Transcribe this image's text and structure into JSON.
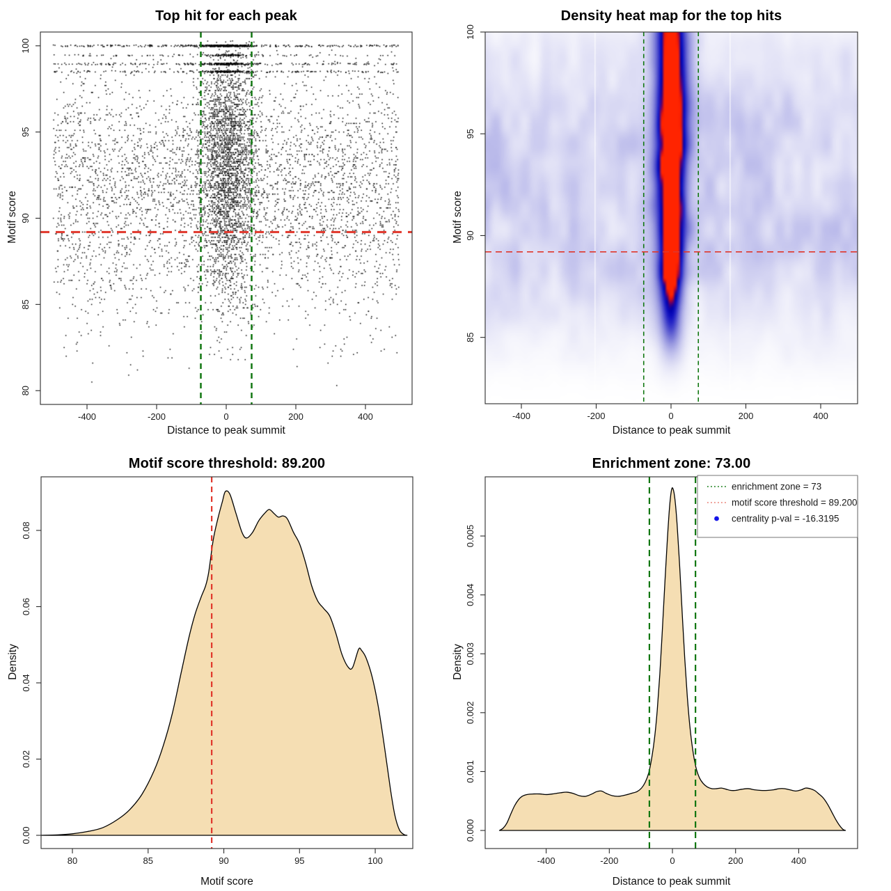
{
  "page": {
    "background": "#ffffff"
  },
  "colors": {
    "threshold_red": "#e0362b",
    "zone_green": "#117711",
    "legend_green": "#2f8b2f",
    "legend_red": "#ec8c83",
    "pval_blue": "#1414e8",
    "point_black": "#000000",
    "area_fill": "#f5deb3",
    "area_stroke": "#000000",
    "box": "#2a2a2a",
    "text": "#1a1a1a"
  },
  "chart_data": [
    {
      "type": "scatter",
      "title": "Top hit for each peak",
      "xlabel": "Distance to peak summit",
      "ylabel": "Motif score",
      "x_domain": [
        -534,
        534
      ],
      "y_domain": [
        79.2,
        100.8
      ],
      "x_ticks": [
        -400,
        -200,
        0,
        200,
        400
      ],
      "x_tick_labels": [
        "-400",
        "-200",
        "0",
        "200",
        "400"
      ],
      "y_ticks": [
        80,
        85,
        90,
        95,
        100
      ],
      "y_tick_labels": [
        "80",
        "85",
        "90",
        "95",
        "100"
      ],
      "motif_score_threshold": 89.2,
      "enrichment_zone": [
        -73,
        73
      ],
      "generator": {
        "seed": 11,
        "n": 7500,
        "center_fraction": 0.42,
        "center_x_mean": 4,
        "center_x_sd": 38,
        "center_score_shift": 1.2,
        "center_band_probability": 0.22,
        "x_limit": 497,
        "top_bands": {
          "probability": 0.13,
          "rows": [
            [
              100.0,
              0.4
            ],
            [
              99.45,
              0.12
            ],
            [
              98.95,
              0.28
            ],
            [
              98.5,
              0.2
            ]
          ],
          "jitter": 0.05
        },
        "score_components": [
          {
            "weight": 0.32,
            "mean": 92.6,
            "sd": 2.1
          },
          {
            "weight": 0.27,
            "mean": 89.6,
            "sd": 2.3
          },
          {
            "weight": 0.18,
            "mean": 95.6,
            "sd": 1.9
          },
          {
            "weight": 0.1,
            "mean": 86.2,
            "sd": 2.4
          }
        ],
        "score_min": 80.15,
        "score_max": 100.3,
        "quantize_step": 0.1,
        "quantize_below": 98.4
      }
    },
    {
      "type": "heatmap",
      "title": "Density heat map for the top hits",
      "xlabel": "Distance to peak summit",
      "ylabel": "Motif score",
      "x_domain": [
        -496.7,
        498.6
      ],
      "y_domain": [
        81.74,
        100
      ],
      "x_ticks": [
        -400,
        -200,
        0,
        200,
        400
      ],
      "x_tick_labels": [
        "-400",
        "-200",
        "0",
        "200",
        "400"
      ],
      "y_ticks": [
        85,
        90,
        95,
        100
      ],
      "y_tick_labels": [
        "85",
        "90",
        "95",
        "100"
      ],
      "motif_score_threshold": 89.2,
      "enrichment_zone": [
        -73,
        73
      ],
      "white_lines_x": [
        -203,
        158
      ],
      "density_model": {
        "blobs": [
          [
            99.9,
            0.88,
            0.9
          ],
          [
            98.1,
            0.97,
            1.1
          ],
          [
            97.0,
            0.94,
            1.0
          ],
          [
            94.8,
            1.0,
            1.5
          ],
          [
            92.4,
            0.8,
            1.3
          ],
          [
            90.3,
            0.76,
            1.0
          ],
          [
            88.8,
            0.7,
            0.9
          ],
          [
            87.1,
            0.6,
            1.3
          ],
          [
            85.3,
            0.3,
            1.2
          ]
        ],
        "column_sigma": {
          "lower": 23,
          "upper": 33,
          "transition_y": 91.2,
          "transition_scale": 1.4
        },
        "noise": {
          "seed": 5,
          "cell_x": 52,
          "cell_y": 2.1,
          "base": 0.1,
          "amp": 0.38
        },
        "envelope": [
          [
            90.2,
            0.8,
            5.0
          ],
          [
            96.0,
            0.45,
            3.0
          ],
          [
            99.3,
            0.22,
            1.5
          ]
        ],
        "fade_below": [
          81.6,
          84.0
        ]
      },
      "colormap": [
        [
          0,
          "#ffffff"
        ],
        [
          0.05,
          "#f6f6fc"
        ],
        [
          0.12,
          "#e9e9f8"
        ],
        [
          0.22,
          "#d4d4f2"
        ],
        [
          0.33,
          "#b9b9ea"
        ],
        [
          0.45,
          "#9898e0"
        ],
        [
          0.56,
          "#7474d6"
        ],
        [
          0.66,
          "#4c4ccd"
        ],
        [
          0.75,
          "#2626c6"
        ],
        [
          0.82,
          "#0d0dbd"
        ],
        [
          0.875,
          "#0000ad"
        ],
        [
          0.91,
          "#2a0089"
        ],
        [
          0.94,
          "#800057"
        ],
        [
          0.965,
          "#cf1018"
        ],
        [
          1,
          "#ff2400"
        ]
      ]
    },
    {
      "type": "area",
      "title": "Motif score threshold: 89.200",
      "xlabel": "Motif score",
      "ylabel": "Density",
      "x_domain": [
        77.93,
        102.48
      ],
      "y_domain": [
        -0.00347,
        0.09406
      ],
      "x_ticks": [
        80,
        85,
        90,
        95,
        100
      ],
      "x_tick_labels": [
        "80",
        "85",
        "90",
        "95",
        "100"
      ],
      "y_ticks": [
        0,
        0.02,
        0.04,
        0.06,
        0.08
      ],
      "y_tick_labels": [
        "0.00",
        "0.02",
        "0.04",
        "0.06",
        "0.08"
      ],
      "threshold_x": 89.2,
      "points": [
        [
          77.95,
          0
        ],
        [
          79.0,
          0.0001
        ],
        [
          80.0,
          0.0004
        ],
        [
          81.0,
          0.001
        ],
        [
          82.0,
          0.002
        ],
        [
          83.0,
          0.0042
        ],
        [
          83.8,
          0.0068
        ],
        [
          84.6,
          0.0108
        ],
        [
          85.4,
          0.017
        ],
        [
          86.0,
          0.0235
        ],
        [
          86.6,
          0.032
        ],
        [
          87.2,
          0.043
        ],
        [
          87.7,
          0.052
        ],
        [
          88.1,
          0.058
        ],
        [
          88.5,
          0.0625
        ],
        [
          88.8,
          0.0655
        ],
        [
          89.0,
          0.069
        ],
        [
          89.3,
          0.0775
        ],
        [
          89.6,
          0.083
        ],
        [
          89.9,
          0.0875
        ],
        [
          90.1,
          0.0902
        ],
        [
          90.4,
          0.0895
        ],
        [
          90.8,
          0.0845
        ],
        [
          91.2,
          0.0795
        ],
        [
          91.5,
          0.078
        ],
        [
          91.9,
          0.0795
        ],
        [
          92.3,
          0.0825
        ],
        [
          92.7,
          0.0845
        ],
        [
          93.0,
          0.0855
        ],
        [
          93.3,
          0.0845
        ],
        [
          93.6,
          0.0835
        ],
        [
          93.9,
          0.0838
        ],
        [
          94.2,
          0.083
        ],
        [
          94.6,
          0.0795
        ],
        [
          95.0,
          0.0765
        ],
        [
          95.4,
          0.0715
        ],
        [
          95.8,
          0.0655
        ],
        [
          96.2,
          0.0615
        ],
        [
          96.6,
          0.0595
        ],
        [
          97.0,
          0.0575
        ],
        [
          97.4,
          0.053
        ],
        [
          97.8,
          0.0475
        ],
        [
          98.2,
          0.0442
        ],
        [
          98.5,
          0.044
        ],
        [
          98.9,
          0.0488
        ],
        [
          99.1,
          0.0485
        ],
        [
          99.4,
          0.0465
        ],
        [
          99.8,
          0.0415
        ],
        [
          100.2,
          0.0338
        ],
        [
          100.6,
          0.0235
        ],
        [
          101.0,
          0.0122
        ],
        [
          101.3,
          0.0052
        ],
        [
          101.6,
          0.0014
        ],
        [
          101.9,
          0.0002
        ],
        [
          102.1,
          0
        ]
      ]
    },
    {
      "type": "area",
      "title": "Enrichment zone: 73.00",
      "xlabel": "Distance to peak summit",
      "ylabel": "Density",
      "x_domain": [
        -593.2,
        586.5
      ],
      "y_domain": [
        -0.000307,
        0.006005
      ],
      "x_ticks": [
        -400,
        -200,
        0,
        200,
        400
      ],
      "x_tick_labels": [
        "-400",
        "-200",
        "0",
        "200",
        "400"
      ],
      "y_ticks": [
        0,
        0.001,
        0.002,
        0.003,
        0.004,
        0.005
      ],
      "y_tick_labels": [
        "0.000",
        "0.001",
        "0.002",
        "0.003",
        "0.004",
        "0.005"
      ],
      "enrichment_zone": [
        -73,
        73
      ],
      "points": [
        [
          -548,
          0
        ],
        [
          -536,
          4e-05
        ],
        [
          -524,
          0.00013
        ],
        [
          -512,
          0.00028
        ],
        [
          -500,
          0.00042
        ],
        [
          -488,
          0.00052
        ],
        [
          -476,
          0.00058
        ],
        [
          -460,
          0.00061
        ],
        [
          -440,
          0.00062
        ],
        [
          -420,
          0.00062
        ],
        [
          -400,
          0.00061
        ],
        [
          -380,
          0.00062
        ],
        [
          -355,
          0.00064
        ],
        [
          -335,
          0.00065
        ],
        [
          -315,
          0.00063
        ],
        [
          -295,
          0.00059
        ],
        [
          -275,
          0.00058
        ],
        [
          -255,
          0.00062
        ],
        [
          -240,
          0.00066
        ],
        [
          -225,
          0.00067
        ],
        [
          -210,
          0.00063
        ],
        [
          -190,
          0.00059
        ],
        [
          -170,
          0.00058
        ],
        [
          -150,
          0.0006
        ],
        [
          -130,
          0.00063
        ],
        [
          -112,
          0.00066
        ],
        [
          -98,
          0.00072
        ],
        [
          -86,
          0.00082
        ],
        [
          -75,
          0.00098
        ],
        [
          -65,
          0.00125
        ],
        [
          -56,
          0.0016
        ],
        [
          -48,
          0.00205
        ],
        [
          -40,
          0.00265
        ],
        [
          -32,
          0.0034
        ],
        [
          -24,
          0.0042
        ],
        [
          -16,
          0.00495
        ],
        [
          -9,
          0.0055
        ],
        [
          -3,
          0.00578
        ],
        [
          2,
          0.0058
        ],
        [
          8,
          0.00562
        ],
        [
          15,
          0.00518
        ],
        [
          23,
          0.00448
        ],
        [
          31,
          0.00368
        ],
        [
          39,
          0.00292
        ],
        [
          47,
          0.00228
        ],
        [
          55,
          0.00178
        ],
        [
          64,
          0.00138
        ],
        [
          74,
          0.00108
        ],
        [
          85,
          0.0009
        ],
        [
          97,
          0.0008
        ],
        [
          110,
          0.00074
        ],
        [
          125,
          0.00071
        ],
        [
          140,
          0.00071
        ],
        [
          155,
          0.00072
        ],
        [
          170,
          0.0007
        ],
        [
          185,
          0.00068
        ],
        [
          200,
          0.00068
        ],
        [
          220,
          0.0007
        ],
        [
          240,
          0.00071
        ],
        [
          260,
          0.00069
        ],
        [
          280,
          0.00068
        ],
        [
          300,
          0.00068
        ],
        [
          320,
          0.00069
        ],
        [
          338,
          0.00071
        ],
        [
          355,
          0.00071
        ],
        [
          372,
          0.00069
        ],
        [
          390,
          0.00067
        ],
        [
          408,
          0.00069
        ],
        [
          422,
          0.00072
        ],
        [
          436,
          0.00071
        ],
        [
          450,
          0.00068
        ],
        [
          464,
          0.00062
        ],
        [
          478,
          0.00055
        ],
        [
          492,
          0.00044
        ],
        [
          506,
          0.0003
        ],
        [
          518,
          0.00018
        ],
        [
          530,
          8e-05
        ],
        [
          540,
          2e-05
        ],
        [
          548,
          0
        ]
      ],
      "legend": {
        "items": [
          {
            "symbol": "dotted-line",
            "color_key": "legend_green",
            "label": "enrichment zone = 73"
          },
          {
            "symbol": "dotted-line",
            "color_key": "legend_red",
            "label": "motif score threshold = 89.200"
          },
          {
            "symbol": "dot",
            "color_key": "pval_blue",
            "label": "centrality p-val = -16.3195"
          }
        ]
      }
    }
  ]
}
